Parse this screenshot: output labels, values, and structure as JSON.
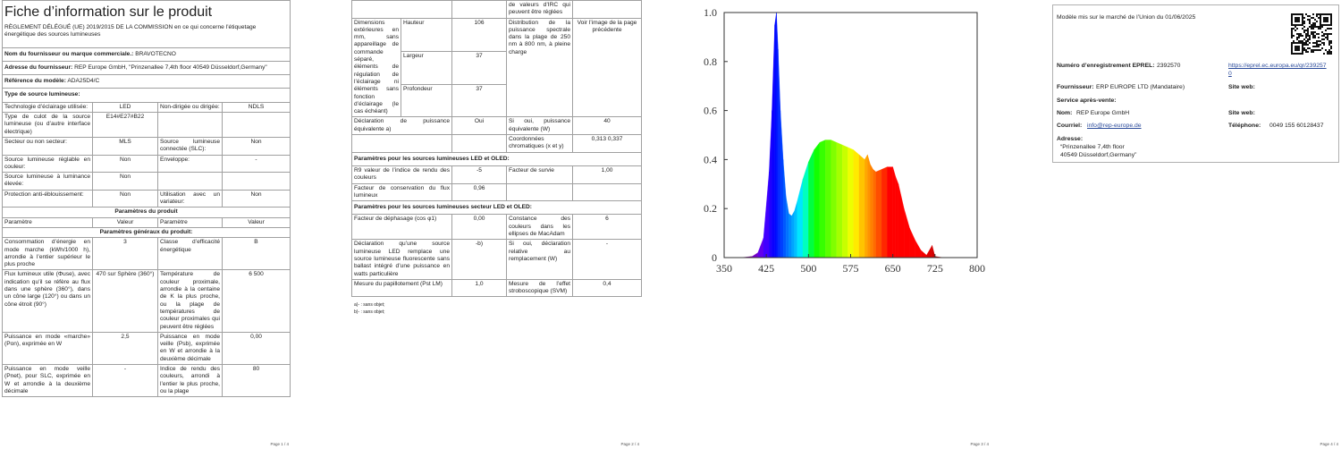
{
  "page1": {
    "rows": [
      {
        "title": "Fiche d’information sur le produit",
        "text": "RÈGLEMENT DÉLÉGUÉ (UE) 2019/2015 DE LA COMMISSION en ce qui concerne l’étiquetage énergétique des sources lumineuses"
      },
      {
        "label": "Nom du fournisseur ou marque commerciale.:",
        "value": "BRAVOTECNO"
      },
      {
        "label": "Adresse du fournisseur:",
        "value": "REP Europe GmbH, \"Prinzenallee 7,4th floor 40549 Düsseldorf,Germany\""
      },
      {
        "label": "Référence du modèle:",
        "value": "ADA25D4/C"
      },
      {
        "label": "Type de source lumineuse:"
      },
      [
        "Technologie d’éclairage utilisée:",
        "LED",
        "Non-dirigée ou dirigée:",
        "NDLS"
      ],
      [
        "Type de culot de la source lumineuse (ou d’autre interface électrique)",
        "E14#E27#B22",
        null,
        null
      ],
      [
        "Secteur ou non secteur:",
        "MLS",
        "Source lumineuse connectée (SLC):",
        "Non"
      ],
      [
        "Source lumineuse réglable en couleur:",
        "Non",
        "Enveloppe:",
        "-"
      ],
      [
        "Source lumineuse à luminance élevée:",
        "Non",
        null,
        null
      ],
      [
        "Protection anti-éblouissement:",
        "Non",
        "Utilisation avec un variateur:",
        "Non"
      ],
      {
        "header": "Paramètres du produit"
      },
      [
        "Paramètre",
        "Valeur",
        "Paramètre",
        "Valeur"
      ],
      {
        "header": "Paramètres généraux du produit:"
      },
      [
        "Consommation d’énergie en mode marche (kWh/1000 h), arrondie à l’entier supérieur le plus proche",
        "3",
        "Classe d’efficacité énergétique",
        "B"
      ],
      [
        "Flux lumineux utile (Φuse), avec indication qu’il se réfère au flux dans une sphère (360°), dans un cône large (120°) ou dans un cône étroit (90°)",
        "470 sur Sphère (360°)",
        "Température de couleur proximale, arrondie à la centaine de K la plus proche, ou la plage de températures de couleur proximales qui peuvent être réglées",
        "6 500"
      ],
      [
        "Puissance en mode «marche» (Pon), exprimée en W",
        "2,5",
        "Puissance en mode veille (Psb), exprimée en W et arrondie à la deuxième décimale",
        "0,00"
      ],
      [
        "Puissance en mode veille (Pnet), pour SLC, exprimée en W et arrondie à la deuxième décimale",
        "-",
        "Indice de rendu des couleurs, arrondi à l’entier le plus proche, ou la plage",
        "80"
      ]
    ],
    "footer": "Page 1 / 4"
  },
  "page2": {
    "rows": [
      [
        null,
        null,
        "de valeurs d’IRC qui peuvent être réglées",
        null
      ],
      {
        "label": "Dimensions extérieures en mm, sans appareillage de commande séparé, éléments de régulation de l’éclairage ni éléments sans fonction d’éclairage (le cas échéant)",
        "dims": [
          {
            "name": "Hauteur",
            "value": "106"
          },
          {
            "name": "Largeur",
            "value": "37"
          },
          {
            "name": "Profondeur",
            "value": "37"
          }
        ],
        "col3": "Distribution de la puissance spectrale dans la plage de 250 nm à 800 nm, à pleine charge",
        "col4": "Voir l’image de la page précédente"
      },
      [
        "Déclaration de puissance équivalente a)",
        "Oui",
        "Si oui, puissance équivalente (W)",
        "40"
      ],
      [
        null,
        null,
        "Coordonnées chromatiques (x et y)",
        "0,313 0,337"
      ],
      {
        "label": "Paramètres pour les sources lumineuses LED et OLED:"
      },
      [
        "R9 valeur de l’indice de rendu des couleurs",
        "-5",
        "Facteur de survie",
        "1,00"
      ],
      [
        "Facteur de conservation du flux lumineux",
        "0,96",
        null,
        null
      ],
      {
        "label": "Paramètres pour les sources lumineuses secteur LED et OLED:"
      },
      [
        "Facteur de déphasage (cos φ1)",
        "0,00",
        "Constance des couleurs dans les ellipses de MacAdam",
        "6"
      ],
      [
        "Déclaration qu’une source lumineuse LED remplace une source lumineuse fluorescente sans ballast intégré d’une puissance en watts particulière",
        "-b)",
        "Si oui, déclaration relative au remplacement (W)",
        "-"
      ],
      [
        "Mesure du papillotement (Pst LM)",
        "1,0",
        "Mesure de l’effet stroboscopique (SVM)",
        "0,4"
      ]
    ],
    "notes": [
      "a)- : sans objet;",
      "b)- : sans objet;"
    ],
    "footer": "Page 2 / 4"
  },
  "page3": {
    "spectrum": {
      "type": "area",
      "x": [
        380,
        400,
        410,
        420,
        430,
        435,
        440,
        443,
        446,
        450,
        455,
        460,
        465,
        470,
        475,
        480,
        490,
        500,
        510,
        520,
        530,
        540,
        550,
        560,
        570,
        580,
        590,
        600,
        605,
        610,
        615,
        620,
        630,
        640,
        650,
        655,
        660,
        670,
        680,
        690,
        700,
        710,
        720,
        725,
        740
      ],
      "values": [
        0,
        0.005,
        0.02,
        0.08,
        0.35,
        0.6,
        0.95,
        1.0,
        0.85,
        0.6,
        0.4,
        0.25,
        0.18,
        0.17,
        0.19,
        0.23,
        0.32,
        0.39,
        0.44,
        0.47,
        0.48,
        0.48,
        0.47,
        0.46,
        0.45,
        0.44,
        0.42,
        0.4,
        0.42,
        0.38,
        0.36,
        0.35,
        0.36,
        0.37,
        0.37,
        0.33,
        0.3,
        0.2,
        0.12,
        0.07,
        0.03,
        0.01,
        0.05,
        0.005,
        0
      ],
      "xlim": [
        350,
        800
      ],
      "ylim": [
        0,
        1.0
      ],
      "xticks": [
        350,
        425,
        500,
        575,
        650,
        725,
        800
      ],
      "yticks": [
        0,
        0.2,
        0.4,
        0.6,
        0.8,
        {
          "value": 1.0,
          "label": "1.0"
        }
      ]
    },
    "footer": "Page 3 / 4"
  },
  "page4": {
    "market": "Modèle mis sur le marché de l’Union du 01/06/2025",
    "eprel_label": "Numéro d’enregistrement EPREL:",
    "eprel_value": "2392570",
    "eprel_url": "https://eprel.ec.europa.eu/qr/2392570",
    "supplier_label": "Fournisseur:",
    "supplier_value": "ERP EUROPE LTD (Mandataire)",
    "website_label_1": "Site web:",
    "service_label": "Service après-vente:",
    "name_label": "Nom:",
    "name_value": "REP Europe GmbH",
    "website_label_2": "Site web:",
    "email_label": "Courriel:",
    "email_value": "info@rep-europe.de",
    "phone_label": "Téléphone:",
    "phone_value": "0049 155 60128437",
    "address_label": "Adresse:",
    "address_lines": [
      "“Prinzenallee 7,4th floor",
      "40549 Düsseldorf,Germany”"
    ],
    "footer": "Page 4 / 4"
  }
}
